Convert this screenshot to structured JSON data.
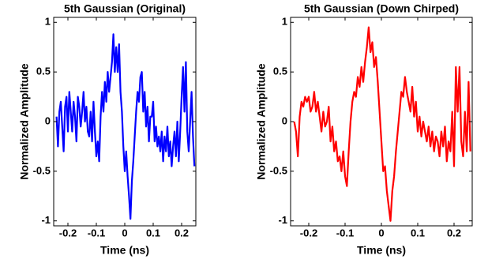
{
  "chart_data": [
    {
      "type": "line",
      "title": "5th Gaussian (Original)",
      "xlabel": "Time (ns)",
      "ylabel": "Normalized Amplitude",
      "color": "#0000ff",
      "x": [
        -0.24,
        -0.235,
        -0.23,
        -0.225,
        -0.22,
        -0.215,
        -0.21,
        -0.205,
        -0.2,
        -0.195,
        -0.19,
        -0.185,
        -0.18,
        -0.175,
        -0.17,
        -0.165,
        -0.16,
        -0.155,
        -0.15,
        -0.145,
        -0.14,
        -0.135,
        -0.13,
        -0.125,
        -0.12,
        -0.115,
        -0.11,
        -0.105,
        -0.1,
        -0.095,
        -0.09,
        -0.085,
        -0.08,
        -0.075,
        -0.07,
        -0.065,
        -0.06,
        -0.055,
        -0.05,
        -0.045,
        -0.04,
        -0.035,
        -0.03,
        -0.025,
        -0.02,
        -0.015,
        -0.01,
        -0.005,
        0,
        0.005,
        0.01,
        0.015,
        0.02,
        0.025,
        0.03,
        0.035,
        0.04,
        0.045,
        0.05,
        0.055,
        0.06,
        0.065,
        0.07,
        0.075,
        0.08,
        0.085,
        0.09,
        0.095,
        0.1,
        0.105,
        0.11,
        0.115,
        0.12,
        0.125,
        0.13,
        0.135,
        0.14,
        0.145,
        0.15,
        0.155,
        0.16,
        0.165,
        0.17,
        0.175,
        0.18,
        0.185,
        0.19,
        0.195,
        0.2,
        0.205,
        0.21,
        0.215,
        0.22,
        0.225,
        0.23,
        0.235,
        0.24,
        0.245
      ],
      "values": [
        0.05,
        -0.25,
        0.1,
        0.2,
        -0.05,
        -0.3,
        0.15,
        0.25,
        -0.1,
        0.3,
        0.1,
        -0.1,
        0.2,
        0.05,
        -0.2,
        0.25,
        0.15,
        -0.05,
        0.1,
        0.3,
        0,
        0.15,
        -0.1,
        -0.15,
        0.1,
        -0.2,
        0.2,
        -0.1,
        -0.35,
        -0.2,
        -0.4,
        0.05,
        0.3,
        0.1,
        0.4,
        0.2,
        0.5,
        0.3,
        0.45,
        0.6,
        0.88,
        0.5,
        0.75,
        0.5,
        0.78,
        0.3,
        0.1,
        -0.25,
        -0.5,
        -0.3,
        -0.55,
        -0.75,
        -0.98,
        -0.6,
        -0.4,
        -0.15,
        0.1,
        0.3,
        0.2,
        0.45,
        0.5,
        0.1,
        0.3,
        -0.05,
        0.15,
        -0.2,
        0.05,
        0.05,
        0.2,
        -0.2,
        -0.05,
        -0.25,
        -0.15,
        -0.3,
        -0.1,
        -0.4,
        -0.15,
        -0.3,
        -0.05,
        -0.35,
        -0.2,
        -0.45,
        -0.25,
        -0.1,
        -0.35,
        0,
        -0.4,
        -0.1,
        0.25,
        0.55,
        0.1,
        0.6,
        -0.1,
        -0.3,
        0,
        0.3,
        -0.15,
        -0.45
      ],
      "xlim": [
        -0.25,
        0.25
      ],
      "xticks": [
        -0.2,
        -0.1,
        0,
        0.1,
        0.2
      ],
      "ylim": [
        -1.05,
        1.05
      ],
      "yticks": [
        1,
        0.5,
        0,
        -0.5,
        -1
      ]
    },
    {
      "type": "line",
      "title": "5th Gaussian (Down Chirped)",
      "xlabel": "Time (ns)",
      "ylabel": "Normalized Amplitude",
      "color": "#ff0000",
      "x": [
        -0.24,
        -0.235,
        -0.23,
        -0.225,
        -0.22,
        -0.215,
        -0.21,
        -0.205,
        -0.2,
        -0.195,
        -0.19,
        -0.185,
        -0.18,
        -0.175,
        -0.17,
        -0.165,
        -0.16,
        -0.155,
        -0.15,
        -0.145,
        -0.14,
        -0.135,
        -0.13,
        -0.125,
        -0.12,
        -0.115,
        -0.11,
        -0.105,
        -0.1,
        -0.095,
        -0.09,
        -0.085,
        -0.08,
        -0.075,
        -0.07,
        -0.065,
        -0.06,
        -0.055,
        -0.05,
        -0.045,
        -0.04,
        -0.035,
        -0.03,
        -0.025,
        -0.02,
        -0.015,
        -0.01,
        -0.005,
        0,
        0.005,
        0.01,
        0.015,
        0.02,
        0.025,
        0.03,
        0.035,
        0.04,
        0.045,
        0.05,
        0.055,
        0.06,
        0.065,
        0.07,
        0.075,
        0.08,
        0.085,
        0.09,
        0.095,
        0.1,
        0.105,
        0.11,
        0.115,
        0.12,
        0.125,
        0.13,
        0.135,
        0.14,
        0.145,
        0.15,
        0.155,
        0.16,
        0.165,
        0.17,
        0.175,
        0.18,
        0.185,
        0.19,
        0.195,
        0.2,
        0.205,
        0.21,
        0.215,
        0.22,
        0.225,
        0.23,
        0.235,
        0.24,
        0.245
      ],
      "values": [
        0,
        -0.1,
        -0.35,
        0.05,
        0.2,
        0.15,
        0.25,
        0.2,
        0.25,
        0.1,
        0.15,
        0.3,
        0.1,
        0.2,
        0.05,
        -0.1,
        0.1,
        -0.05,
        0,
        0.15,
        -0.2,
        -0.05,
        -0.3,
        -0.2,
        -0.4,
        -0.35,
        -0.5,
        -0.3,
        -0.55,
        -0.65,
        -0.3,
        0,
        0.2,
        0.3,
        0.25,
        0.45,
        0.35,
        0.55,
        0.4,
        0.6,
        0.75,
        0.95,
        0.7,
        0.8,
        0.55,
        0.65,
        0.4,
        0.1,
        -0.2,
        -0.5,
        -0.45,
        -0.7,
        -0.85,
        -1,
        -0.7,
        -0.55,
        -0.3,
        -0.1,
        0.1,
        0.3,
        0.25,
        0.45,
        0.3,
        0.2,
        0.1,
        0.35,
        0.05,
        0.2,
        -0.1,
        0.05,
        -0.15,
        0,
        -0.1,
        -0.2,
        -0.05,
        -0.25,
        -0.1,
        -0.3,
        -0.15,
        -0.2,
        -0.35,
        -0.1,
        -0.25,
        -0.05,
        -0.4,
        -0.2,
        -0.3,
        0.1,
        -0.45,
        0.55,
        0.1,
        0.55,
        -0.2,
        -0.35,
        0.1,
        -0.3,
        0.4,
        -0.3
      ],
      "xlim": [
        -0.25,
        0.25
      ],
      "xticks": [
        -0.2,
        -0.1,
        0,
        0.1,
        0.2
      ],
      "ylim": [
        -1.05,
        1.05
      ],
      "yticks": [
        1,
        0.5,
        0,
        -0.5,
        -1
      ]
    }
  ]
}
